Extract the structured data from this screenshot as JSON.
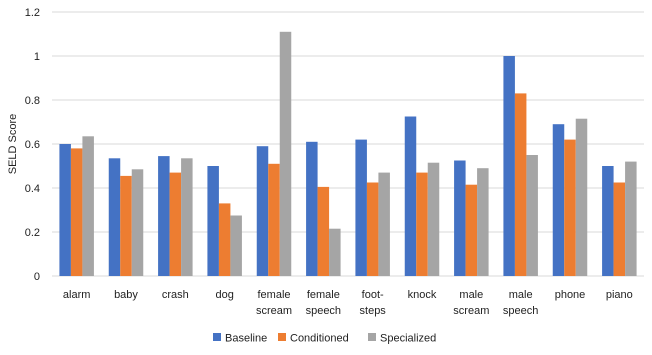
{
  "chart_data": {
    "type": "bar",
    "title": "",
    "xlabel": "",
    "ylabel": "SELD Score",
    "ylim": [
      0,
      1.2
    ],
    "yticks": [
      "0",
      "0.2",
      "0.4",
      "0.6",
      "0.8",
      "1",
      "1.2"
    ],
    "grid": "horizontal",
    "legend_position": "bottom",
    "categories": [
      [
        "alarm"
      ],
      [
        "baby"
      ],
      [
        "crash"
      ],
      [
        "dog"
      ],
      [
        "female",
        "scream"
      ],
      [
        "female",
        "speech"
      ],
      [
        "foot-",
        "steps"
      ],
      [
        "knock"
      ],
      [
        "male",
        "scream"
      ],
      [
        "male",
        "speech"
      ],
      [
        "phone"
      ],
      [
        "piano"
      ]
    ],
    "series": [
      {
        "name": "Baseline",
        "color": "#4472C4",
        "values": [
          0.6,
          0.535,
          0.545,
          0.5,
          0.59,
          0.61,
          0.62,
          0.725,
          0.525,
          1.0,
          0.69,
          0.5
        ]
      },
      {
        "name": "Conditioned",
        "color": "#ED7D31",
        "values": [
          0.58,
          0.455,
          0.47,
          0.33,
          0.51,
          0.405,
          0.425,
          0.47,
          0.415,
          0.83,
          0.62,
          0.425
        ]
      },
      {
        "name": "Specialized",
        "color": "#A5A5A5",
        "values": [
          0.635,
          0.485,
          0.535,
          0.275,
          1.11,
          0.215,
          0.47,
          0.515,
          0.49,
          0.55,
          0.715,
          0.52
        ]
      }
    ]
  }
}
